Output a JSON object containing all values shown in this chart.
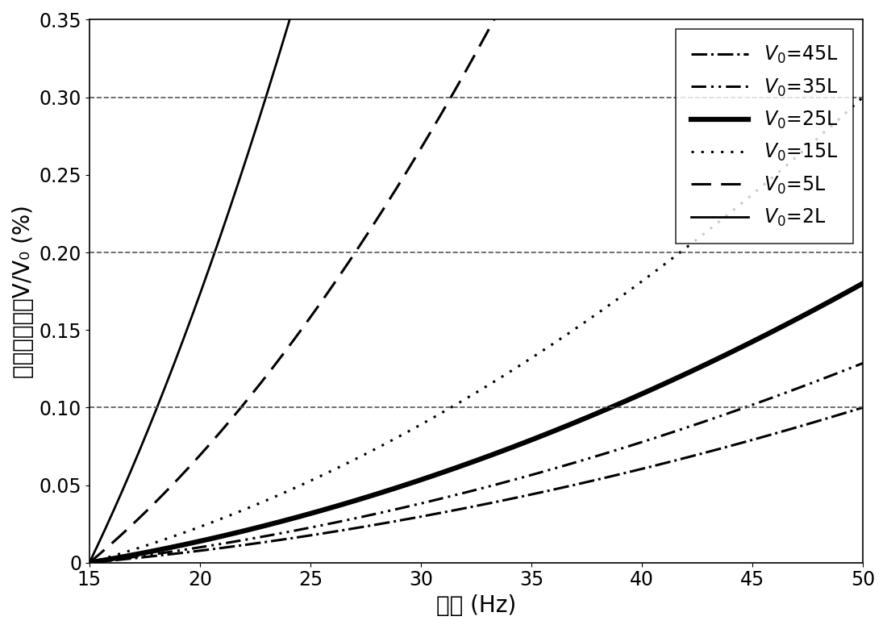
{
  "xlabel": "频率 (Hz)",
  "ylabel": "过充量百分比V/V₀ (%)",
  "xlim": [
    15,
    50
  ],
  "ylim": [
    0,
    0.35
  ],
  "xticks": [
    15,
    20,
    25,
    30,
    35,
    40,
    45,
    50
  ],
  "yticks": [
    0,
    0.05,
    0.1,
    0.15,
    0.2,
    0.25,
    0.3,
    0.35
  ],
  "ytick_labels": [
    "0",
    "0.05",
    "0.10",
    "0.15",
    "0.20",
    "0.25",
    "0.30",
    "0.35"
  ],
  "hlines": [
    0.1,
    0.2,
    0.3
  ],
  "K": 0.001978,
  "series": [
    {
      "V0": 45,
      "label": "$V_0$=45L",
      "linestyle": "dashdot",
      "linewidth": 2.2,
      "dashes": null
    },
    {
      "V0": 35,
      "label": "$V_0$=35L",
      "linestyle": "dashdotdot",
      "linewidth": 2.2,
      "dashes": [
        6,
        2,
        1,
        2,
        1,
        2
      ]
    },
    {
      "V0": 25,
      "label": "$V_0$=25L",
      "linestyle": "solid",
      "linewidth": 4.5,
      "dashes": null
    },
    {
      "V0": 15,
      "label": "$V_0$=15L",
      "linestyle": "dotted",
      "linewidth": 2.2,
      "dashes": [
        1,
        3
      ]
    },
    {
      "V0": 5,
      "label": "$V_0$=5L",
      "linestyle": "dashed",
      "linewidth": 2.2,
      "dashes": [
        8,
        4
      ]
    },
    {
      "V0": 2,
      "label": "$V_0$=2L",
      "linestyle": "solid",
      "linewidth": 2.0,
      "dashes": null
    }
  ],
  "line_color": "#000000",
  "background_color": "#ffffff",
  "legend_fontsize": 17,
  "axis_label_fontsize": 20,
  "tick_fontsize": 17,
  "hline_color": "#555555",
  "hline_linestyle": "--",
  "hline_linewidth": 1.2,
  "legend_loc": "upper right"
}
